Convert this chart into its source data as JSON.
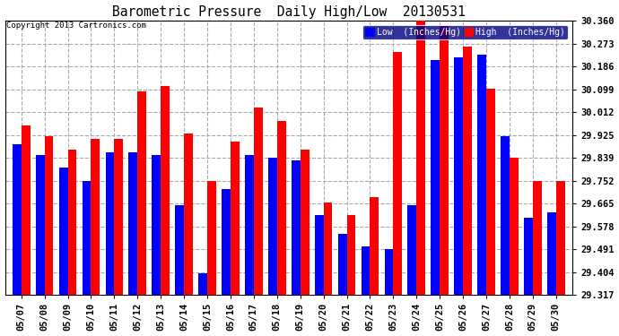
{
  "title": "Barometric Pressure  Daily High/Low  20130531",
  "copyright": "Copyright 2013 Cartronics.com",
  "legend_low": "Low  (Inches/Hg)",
  "legend_high": "High  (Inches/Hg)",
  "dates": [
    "05/07",
    "05/08",
    "05/09",
    "05/10",
    "05/11",
    "05/12",
    "05/13",
    "05/14",
    "05/15",
    "05/16",
    "05/17",
    "05/18",
    "05/19",
    "05/20",
    "05/21",
    "05/22",
    "05/23",
    "05/24",
    "05/25",
    "05/26",
    "05/27",
    "05/28",
    "05/29",
    "05/30"
  ],
  "low": [
    29.89,
    29.85,
    29.8,
    29.75,
    29.86,
    29.86,
    29.85,
    29.66,
    29.4,
    29.72,
    29.85,
    29.84,
    29.83,
    29.62,
    29.55,
    29.5,
    29.49,
    29.66,
    30.21,
    30.22,
    30.23,
    29.92,
    29.61,
    29.63
  ],
  "high": [
    29.96,
    29.92,
    29.87,
    29.91,
    29.91,
    30.09,
    30.11,
    29.93,
    29.75,
    29.9,
    30.03,
    29.98,
    29.87,
    29.67,
    29.62,
    29.69,
    30.24,
    30.37,
    30.34,
    30.26,
    30.1,
    29.84,
    29.75,
    29.75
  ],
  "low_color": "#0000FF",
  "high_color": "#FF0000",
  "bg_color": "#FFFFFF",
  "plot_bg_color": "#FFFFFF",
  "grid_color": "#AAAAAA",
  "text_color": "#000000",
  "legend_bg": "#000080",
  "legend_text": "#FFFFFF",
  "ylim_min": 29.317,
  "ylim_max": 30.36,
  "yticks": [
    29.317,
    29.404,
    29.491,
    29.578,
    29.665,
    29.752,
    29.839,
    29.925,
    30.012,
    30.099,
    30.186,
    30.273,
    30.36
  ]
}
